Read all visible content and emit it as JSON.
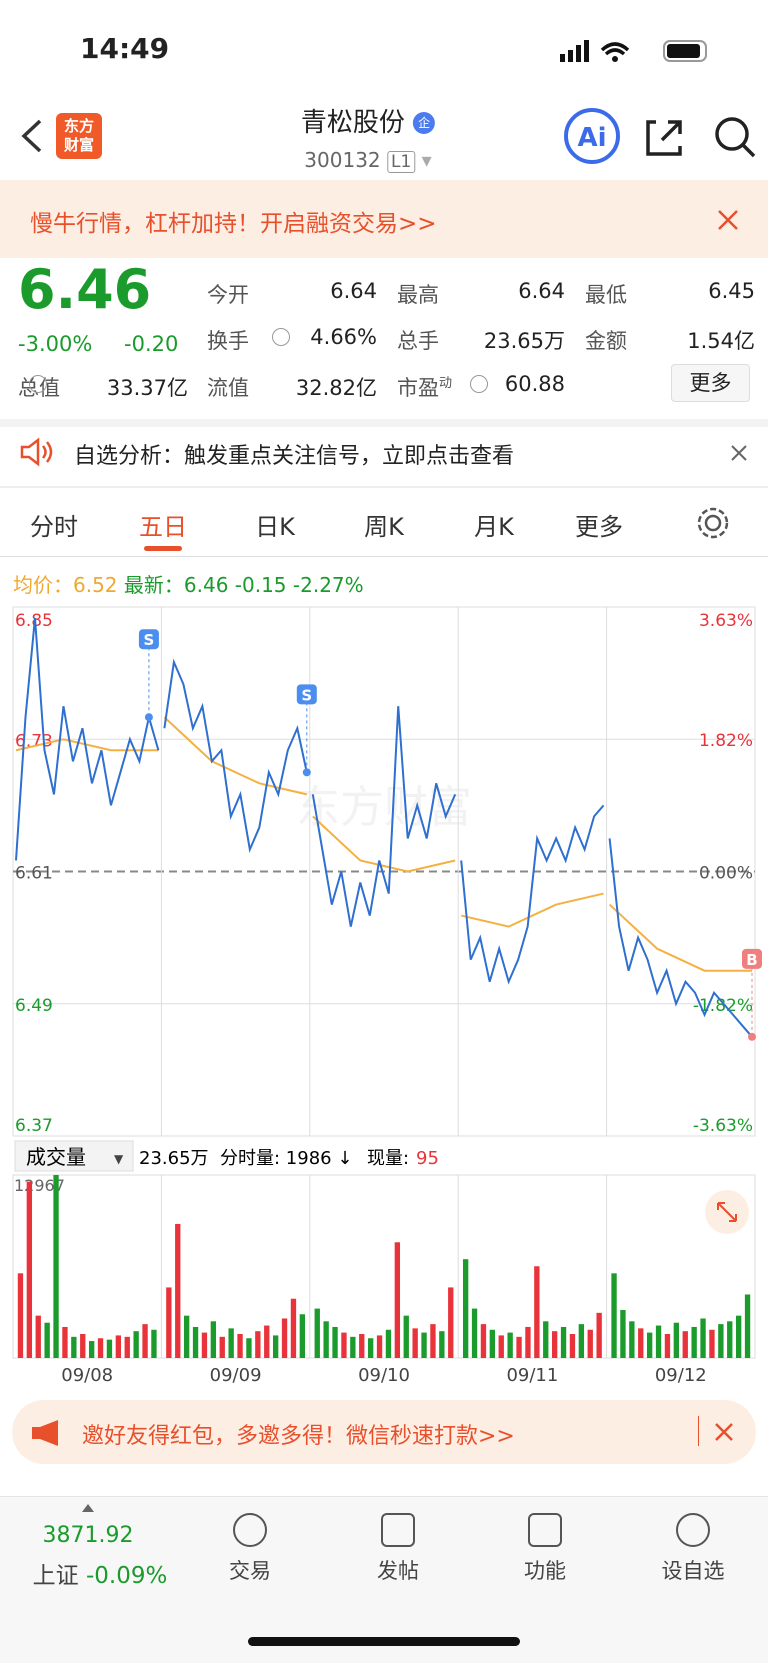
{
  "status": {
    "time": "14:49"
  },
  "header": {
    "logo": [
      "东方",
      "财富"
    ],
    "name": "青松股份",
    "badge": "企",
    "code": "300132",
    "level": "L1"
  },
  "banner": {
    "text": "慢牛行情，杠杆加持！开启融资交易>>"
  },
  "quote": {
    "price": "6.46",
    "change_pct": "-3.00%",
    "change": "-0.20",
    "total": {
      "label": "总值",
      "value": "33.37亿"
    },
    "fields": [
      {
        "label": "今开",
        "value": "6.64"
      },
      {
        "label": "最高",
        "value": "6.64"
      },
      {
        "label": "最低",
        "value": "6.45"
      },
      {
        "label": "换手",
        "value": "4.66%"
      },
      {
        "label": "总手",
        "value": "23.65万"
      },
      {
        "label": "金额",
        "value": "1.54亿"
      },
      {
        "label": "流值",
        "value": "32.82亿"
      },
      {
        "label": "市盈",
        "sup": "动",
        "value": "60.88"
      }
    ],
    "more": "更多"
  },
  "notice": {
    "text": "自选分析：触发重点关注信号，立即点击查看"
  },
  "tabs": {
    "items": [
      "分时",
      "五日",
      "日K",
      "周K",
      "月K",
      "更多"
    ],
    "active": 1
  },
  "chart": {
    "avg_label": "均价：",
    "avg": "6.52",
    "latest_label": "最新：",
    "latest": "6.46",
    "change": "-0.15",
    "change_pct": "-2.27%",
    "watermark": "东方财富",
    "ylim": [
      6.37,
      6.85
    ],
    "yticks": [
      6.85,
      6.73,
      6.61,
      6.49,
      6.37
    ],
    "y2lim": [
      -3.63,
      3.63
    ],
    "y2ticks": [
      {
        "value": 3.63,
        "label": "3.63%"
      },
      {
        "value": 1.82,
        "label": "1.82%"
      },
      {
        "value": 0,
        "label": "0.00%"
      },
      {
        "value": -1.82,
        "label": "-1.82%"
      },
      {
        "value": -3.63,
        "label": "-3.63%"
      }
    ],
    "markers": [
      "S",
      "S",
      "B"
    ],
    "days": [
      {
        "date": "09/08",
        "price": [
          6.62,
          6.75,
          6.84,
          6.72,
          6.68,
          6.76,
          6.71,
          6.74,
          6.69,
          6.72,
          6.67,
          6.7,
          6.73,
          6.71,
          6.75,
          6.72
        ],
        "avg": [
          6.72,
          6.73,
          6.72,
          6.72
        ],
        "volume": [
          6000,
          12500,
          3000,
          2500,
          12967,
          2200,
          1500,
          1700,
          1200,
          1400,
          1300,
          1600,
          1500,
          1900,
          2400,
          2000
        ]
      },
      {
        "date": "09/09",
        "price": [
          6.74,
          6.8,
          6.78,
          6.74,
          6.76,
          6.71,
          6.72,
          6.66,
          6.68,
          6.63,
          6.65,
          6.7,
          6.68,
          6.72,
          6.74,
          6.7
        ],
        "avg": [
          6.75,
          6.71,
          6.69,
          6.68
        ],
        "volume": [
          5000,
          9500,
          3000,
          2200,
          1800,
          2600,
          1500,
          2100,
          1700,
          1400,
          1900,
          2300,
          1600,
          2800,
          4200,
          3100
        ]
      },
      {
        "date": "09/10",
        "price": [
          6.68,
          6.63,
          6.58,
          6.61,
          6.56,
          6.6,
          6.57,
          6.62,
          6.59,
          6.76,
          6.64,
          6.67,
          6.64,
          6.69,
          6.66,
          6.68
        ],
        "avg": [
          6.66,
          6.62,
          6.61,
          6.62
        ],
        "volume": [
          3500,
          2600,
          2200,
          1800,
          1500,
          1700,
          1400,
          1600,
          2000,
          8200,
          3000,
          2100,
          1800,
          2400,
          1900,
          5000
        ]
      },
      {
        "date": "09/11",
        "price": [
          6.62,
          6.53,
          6.55,
          6.51,
          6.54,
          6.51,
          6.53,
          6.56,
          6.64,
          6.62,
          6.64,
          6.62,
          6.65,
          6.63,
          6.66,
          6.67
        ],
        "avg": [
          6.57,
          6.56,
          6.58,
          6.59
        ],
        "volume": [
          7000,
          3500,
          2400,
          2000,
          1600,
          1800,
          1500,
          2200,
          6500,
          2600,
          1900,
          2200,
          1700,
          2400,
          2000,
          3200
        ]
      },
      {
        "date": "09/12",
        "price": [
          6.64,
          6.56,
          6.52,
          6.55,
          6.53,
          6.5,
          6.52,
          6.49,
          6.51,
          6.5,
          6.48,
          6.5,
          6.49,
          6.48,
          6.47,
          6.46
        ],
        "avg": [
          6.58,
          6.54,
          6.52,
          6.52
        ],
        "volume": [
          6000,
          3400,
          2600,
          2100,
          1800,
          2300,
          1700,
          2500,
          1900,
          2200,
          2800,
          2000,
          2400,
          2600,
          3000,
          4500
        ]
      }
    ],
    "volume": {
      "label": "成交量",
      "total": "23.65万",
      "period": "分时量: 1986 ↓",
      "now_label": "现量:",
      "now": "95",
      "ylim": [
        0,
        12967
      ],
      "yticks": [
        12967
      ]
    }
  },
  "promo": {
    "text": "邀好友得红包，多邀多得！微信秒速打款>>"
  },
  "bottom": {
    "index": "3871.92",
    "index_name": "上证",
    "index_change": "-0.09%",
    "nav": [
      "交易",
      "发帖",
      "功能",
      "设自选"
    ]
  }
}
